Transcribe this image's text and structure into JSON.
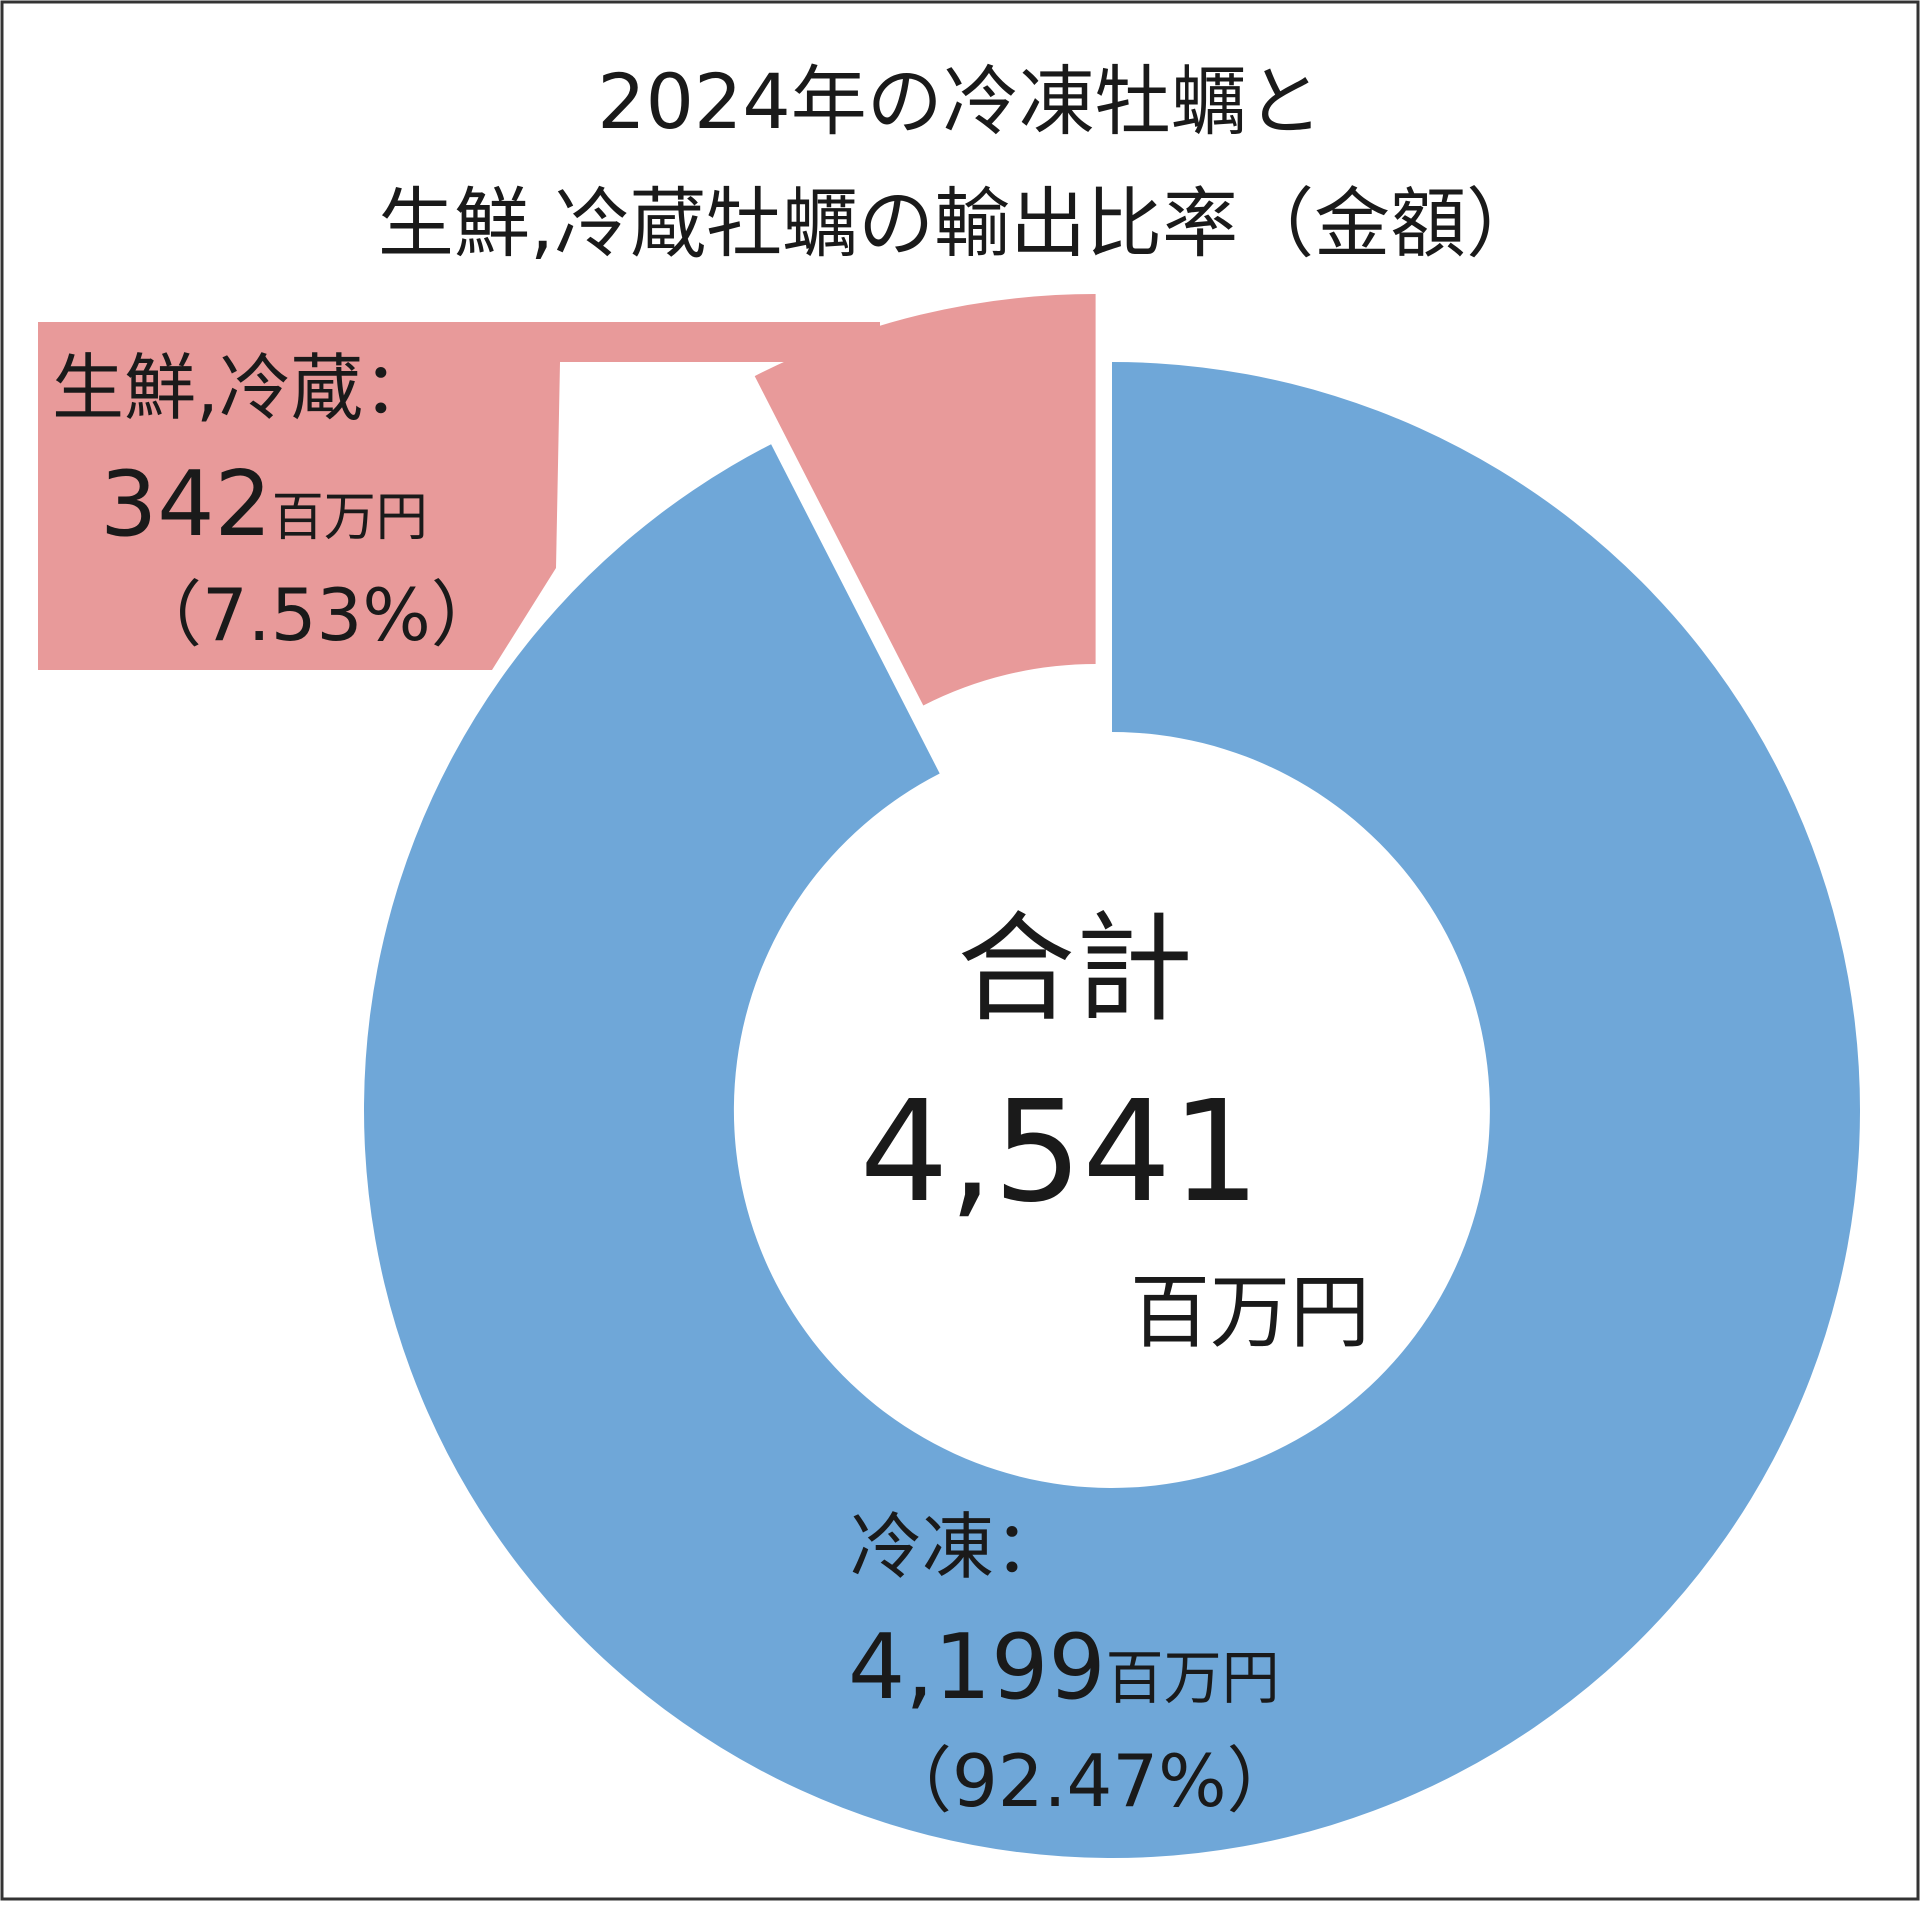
{
  "chart_data": {
    "type": "pie",
    "title_line1": "2024年の冷凍牡蠣と",
    "title_line2": "生鮮,冷蔵牡蠣の輸出比率（金額）",
    "unit": "百万円",
    "center": {
      "label": "合計",
      "total": "4,541",
      "unit": "百万円"
    },
    "slices": [
      {
        "name": "冷凍：",
        "value": 4199,
        "value_label": "4,199",
        "unit": "百万円",
        "percent": 92.47,
        "percent_label": "（92.47%）",
        "color": "#6fa7d8"
      },
      {
        "name": "生鮮,冷蔵：",
        "value": 342,
        "value_label": "342",
        "unit": "百万円",
        "percent": 7.53,
        "percent_label": "（7.53%）",
        "color": "#e89a9a"
      }
    ]
  }
}
